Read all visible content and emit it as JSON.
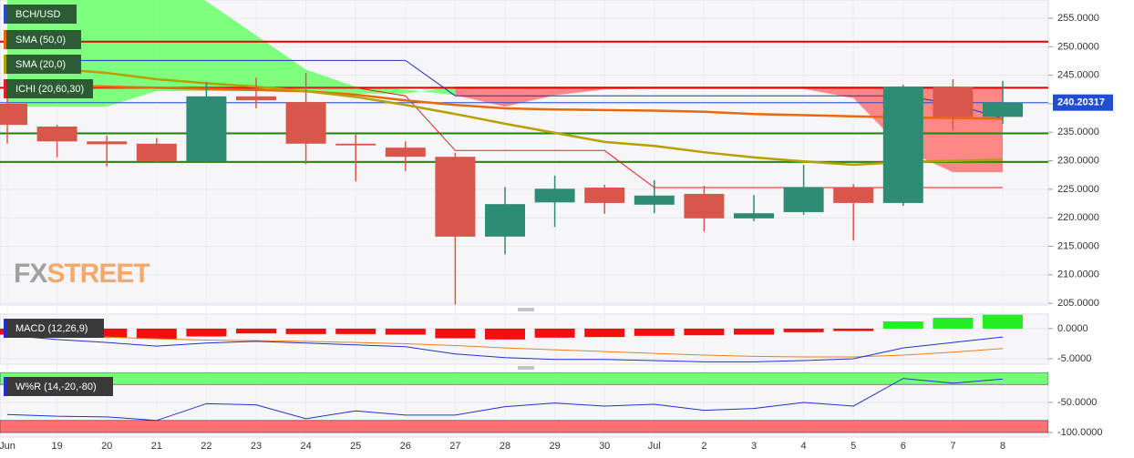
{
  "chart_data": [
    {
      "type": "candlestick",
      "symbol": "BCH/USD",
      "categories": [
        "Jun",
        "19",
        "20",
        "21",
        "22",
        "23",
        "24",
        "25",
        "26",
        "27",
        "28",
        "29",
        "30",
        "Jul",
        "2",
        "3",
        "4",
        "5",
        "6",
        "7",
        "8"
      ],
      "open": [
        240,
        236,
        233.4,
        233,
        229.9,
        241.3,
        240.3,
        233,
        232.3,
        230.7,
        216.7,
        222.7,
        225.3,
        222.3,
        224.2,
        219.9,
        221,
        225.4,
        222.6,
        242.9,
        237.7
      ],
      "high": [
        242,
        236.3,
        234.4,
        234,
        243.8,
        244.6,
        245.4,
        234.6,
        233.4,
        231.4,
        225.4,
        227.4,
        225.8,
        226.6,
        225.6,
        224,
        229.3,
        225.9,
        243.3,
        244.3,
        244
      ],
      "low": [
        233,
        230.6,
        229,
        229.8,
        229.8,
        239.2,
        229.4,
        226.4,
        228.2,
        204.8,
        213.6,
        218.4,
        220.7,
        220.8,
        217.6,
        219.4,
        220.5,
        216,
        222.1,
        235.4,
        236.5
      ],
      "close": [
        236.3,
        233.4,
        232.9,
        229.9,
        241.3,
        240.6,
        233,
        232.7,
        230.7,
        216.7,
        222.4,
        225.1,
        222.6,
        223.9,
        219.9,
        220.8,
        225.4,
        222.6,
        243,
        237.7,
        240.2
      ],
      "up_color": "#2e8b74",
      "down_color": "#d9574a",
      "overlays": [
        {
          "name": "SMA (50,0)",
          "color": "#e8680c",
          "values": [
            243.4,
            243.2,
            243.0,
            242.8,
            242.6,
            242.4,
            242.2,
            241.6,
            240.6,
            239.8,
            239.2,
            239.0,
            238.9,
            238.8,
            238.6,
            238.2,
            238.0,
            237.8,
            237.6,
            237.5,
            237.4
          ]
        },
        {
          "name": "SMA (20,0)",
          "color": "#b5a000",
          "values": [
            246.4,
            246.1,
            245.4,
            244.3,
            243.6,
            243.0,
            242.2,
            241.2,
            239.8,
            238.2,
            236.5,
            234.9,
            233.3,
            232.6,
            231.5,
            230.6,
            229.9,
            229.3,
            229.8,
            230.0,
            230.2
          ]
        }
      ],
      "ichimoku": {
        "name": "ICHI (20,60,30)",
        "tenkan": {
          "color": "#e02020",
          "values": [
            242.8,
            242.8,
            242.8,
            242.8,
            242.8,
            242.8,
            242.8,
            242.8,
            241.4,
            231.8,
            231.8,
            231.8,
            231.8,
            225.3,
            225.3,
            225.3,
            225.3,
            225.3,
            225.3,
            225.3,
            225.3
          ]
        },
        "kijun": {
          "color": "#2030c0",
          "values": [
            247.6,
            247.6,
            247.6,
            247.6,
            247.6,
            247.6,
            247.6,
            247.6,
            247.6,
            241.4,
            241.4,
            241.4,
            241.4,
            241.4,
            241.4,
            241.4,
            241.4,
            241.4,
            241.4,
            240.0,
            237.4
          ]
        },
        "span_a": [
          262,
          262,
          262,
          262,
          258,
          252,
          246,
          243,
          242.5,
          241.5,
          239.5,
          241.5,
          242.5,
          242.6,
          242.6,
          242.6,
          242.6,
          241,
          232,
          228,
          228
        ],
        "span_b": [
          239.5,
          239.5,
          239.5,
          242.2,
          242.2,
          242.2,
          242.2,
          241.8,
          241.8,
          243,
          243,
          243,
          243,
          243,
          243,
          243,
          243,
          243,
          243,
          243,
          242.8
        ],
        "bull_color": "#77ff77",
        "bear_color": "#ff6060"
      },
      "levels": [
        {
          "value": 250.9,
          "color": "#e00000"
        },
        {
          "value": 242.8,
          "color": "#e00000"
        },
        {
          "value": 234.8,
          "color": "#1f8a00"
        },
        {
          "value": 229.8,
          "color": "#1f8a00"
        }
      ],
      "last_price": 240.20317,
      "last_price_color": "#1f4fd0",
      "ylim": [
        204.7,
        258.2
      ],
      "yticks": [
        {
          "value": 205,
          "label": "205.0000"
        },
        {
          "value": 210,
          "label": "210.0000"
        },
        {
          "value": 215,
          "label": "215.0000"
        },
        {
          "value": 220,
          "label": "220.0000"
        },
        {
          "value": 225,
          "label": "225.0000"
        },
        {
          "value": 230,
          "label": "230.0000"
        },
        {
          "value": 235,
          "label": "235.0000"
        },
        {
          "value": 240,
          "label": "240.0000"
        },
        {
          "value": 245,
          "label": "245.0000"
        },
        {
          "value": 250,
          "label": "250.0000"
        },
        {
          "value": 255,
          "label": "255.0000"
        }
      ],
      "grid": true,
      "watermark": [
        "FX",
        "STREET"
      ]
    },
    {
      "type": "macd",
      "name": "MACD (12,26,9)",
      "histogram": [
        -1.0,
        -1.3,
        -1.5,
        -1.7,
        -1.3,
        -0.8,
        -0.9,
        -0.9,
        -1.0,
        -1.6,
        -1.8,
        -1.5,
        -1.4,
        -1.2,
        -1.1,
        -1.0,
        -0.6,
        -0.4,
        1.2,
        1.8,
        2.3
      ],
      "up_color": "#22ee22",
      "down_color": "#ee1111",
      "macd": {
        "color": "#2030d0",
        "values": [
          -1.1,
          -1.8,
          -2.3,
          -2.9,
          -2.4,
          -2.1,
          -2.4,
          -2.7,
          -3.0,
          -4.2,
          -4.8,
          -5.1,
          -5.1,
          -5.3,
          -5.5,
          -5.5,
          -5.3,
          -5.0,
          -3.2,
          -2.3,
          -1.4
        ]
      },
      "signal": {
        "color": "#e8801c",
        "values": [
          -0.8,
          -1.1,
          -1.4,
          -1.7,
          -1.9,
          -2.0,
          -2.1,
          -2.3,
          -2.5,
          -2.8,
          -3.2,
          -3.5,
          -3.8,
          -4.1,
          -4.4,
          -4.6,
          -4.7,
          -4.7,
          -4.4,
          -3.9,
          -3.3
        ]
      },
      "ylim": [
        -5.9,
        2.4
      ],
      "yticks": [
        {
          "value": 0,
          "label": "0.0000"
        },
        {
          "value": -5,
          "label": "-5.0000"
        }
      ]
    },
    {
      "type": "williams",
      "name": "W%R (14,-20,-80)",
      "values": [
        -70,
        -73,
        -74,
        -80,
        -52,
        -54,
        -77,
        -64,
        -71,
        -71,
        -57,
        -51,
        -56,
        -53,
        -63,
        -60,
        -50,
        -56,
        -10,
        -18,
        -11
      ],
      "color": "#2030d0",
      "overbought": -20,
      "oversold": -80,
      "bull_color": "#77ff77",
      "bear_color": "#ff7070",
      "ylim": [
        -100,
        0
      ],
      "yticks": [
        {
          "value": -50,
          "label": "-50.0000"
        },
        {
          "value": -100,
          "label": "-100.0000"
        }
      ]
    }
  ]
}
